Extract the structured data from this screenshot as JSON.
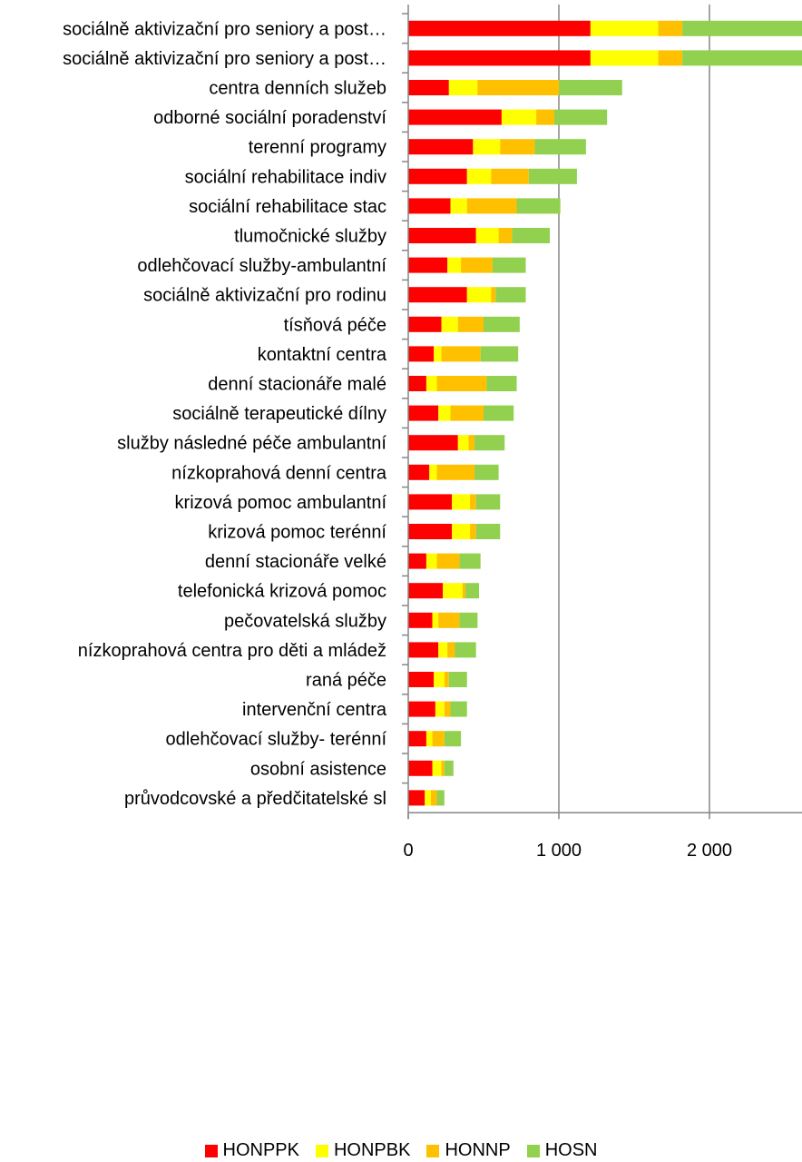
{
  "chart_data": {
    "type": "bar",
    "orientation": "horizontal",
    "stacked": true,
    "categories": [
      "sociálně aktivizační pro seniory a post…",
      "sociálně aktivizační pro seniory a post…",
      "centra denních služeb",
      "odborné sociální poradenství",
      "terenní programy",
      "sociální rehabilitace indiv",
      "sociální rehabilitace stac",
      "tlumočnické služby",
      "odlehčovací služby-ambulantní",
      "sociálně aktivizační pro rodinu",
      "tísňová péče",
      "kontaktní centra",
      "denní stacionáře malé",
      "sociálně terapeutické dílny",
      "služby následné péče ambulantní",
      "nízkoprahová denní centra",
      "krizová pomoc ambulantní",
      "krizová pomoc terénní",
      "denní stacionáře velké",
      "telefonická krizová pomoc",
      "pečovatelská služby",
      "nízkoprahová centra pro děti a mládež",
      "raná péče",
      "intervenční centra",
      "odlehčovací služby- terénní",
      "osobní asistence",
      "průvodcovské a předčitatelské sl"
    ],
    "series": [
      {
        "name": "HONPPK",
        "color": "#ff0000",
        "values": [
          1210,
          1210,
          270,
          620,
          430,
          390,
          280,
          450,
          260,
          390,
          220,
          170,
          120,
          200,
          330,
          140,
          290,
          290,
          120,
          230,
          160,
          200,
          170,
          180,
          120,
          160,
          110
        ]
      },
      {
        "name": "HONPBK",
        "color": "#ffff00",
        "values": [
          450,
          450,
          190,
          230,
          180,
          160,
          110,
          150,
          90,
          160,
          110,
          50,
          70,
          80,
          70,
          50,
          120,
          120,
          70,
          130,
          40,
          60,
          70,
          60,
          40,
          60,
          40
        ]
      },
      {
        "name": "HONNP",
        "color": "#ffc000",
        "values": [
          160,
          160,
          540,
          120,
          230,
          250,
          330,
          90,
          210,
          30,
          170,
          260,
          330,
          220,
          40,
          250,
          40,
          40,
          150,
          20,
          140,
          50,
          30,
          40,
          80,
          20,
          40
        ]
      },
      {
        "name": "HOSN",
        "color": "#92d050",
        "values": [
          860,
          860,
          420,
          350,
          340,
          320,
          290,
          250,
          220,
          200,
          240,
          250,
          200,
          200,
          200,
          160,
          160,
          160,
          140,
          90,
          120,
          140,
          120,
          110,
          110,
          60,
          50
        ]
      }
    ],
    "xlim": [
      0,
      2600
    ],
    "xticks": [
      0,
      1000,
      2000
    ],
    "xtick_labels": [
      "0",
      "1 000",
      "2 000"
    ],
    "grid": true,
    "legend": "bottom"
  }
}
